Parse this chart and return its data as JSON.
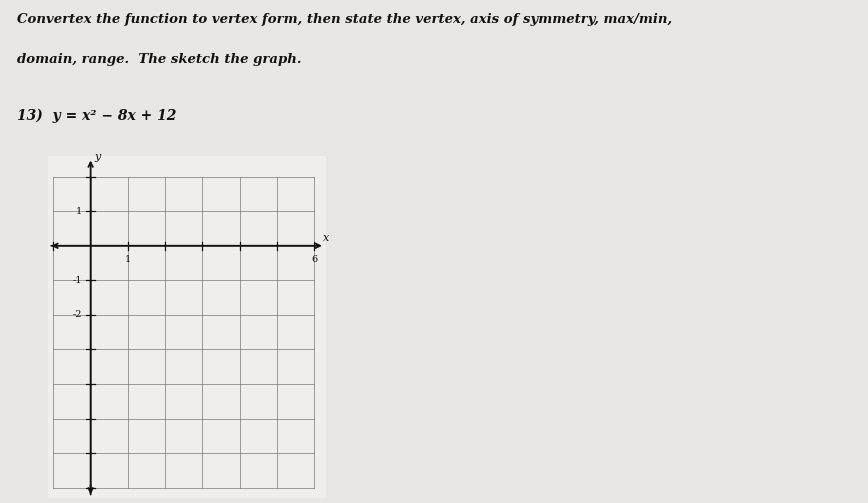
{
  "title_line1": "Convertex the function to vertex form, then state the vertex, axis of symmetry, max/min,",
  "title_line2": "domain, range.  The sketch the graph.",
  "problem_label": "13)",
  "equation": "y = x² − 8x + 12",
  "background_color": "#e8e6e2",
  "graph_bg_color": "#f0eeeb",
  "grid_color": "#777777",
  "axis_color": "#111111",
  "text_color": "#111111",
  "x_min": -1,
  "x_max": 6,
  "y_min": -7,
  "y_max": 2,
  "x_tick_labels": {
    "1": 1,
    "6": 6
  },
  "y_tick_labels": {
    "1": 1,
    "-1": -1,
    "-2": -2
  }
}
